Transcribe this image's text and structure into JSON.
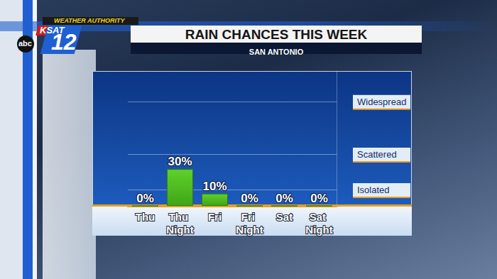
{
  "chart_data": {
    "type": "bar",
    "title": "RAIN CHANCES THIS WEEK",
    "subtitle": "SAN ANTONIO",
    "annotations": [
      "WEATHER AUTHORITY",
      "KSAT",
      "12",
      "abc"
    ],
    "categories": [
      "Thu",
      "Thu Night",
      "Fri",
      "Fri Night",
      "Sat",
      "Sat Night"
    ],
    "values": [
      0,
      30,
      10,
      0,
      0,
      0
    ],
    "value_labels": [
      "0%",
      "30%",
      "10%",
      "0%",
      "0%",
      "0%"
    ],
    "color": "#5fd12a",
    "ylim": [
      0,
      110
    ],
    "yticks": [
      {
        "value": 13,
        "label": "Isolated"
      },
      {
        "value": 42,
        "label": "Scattered"
      },
      {
        "value": 85,
        "label": "Widespread"
      }
    ],
    "grid": true,
    "data_labels": true
  }
}
